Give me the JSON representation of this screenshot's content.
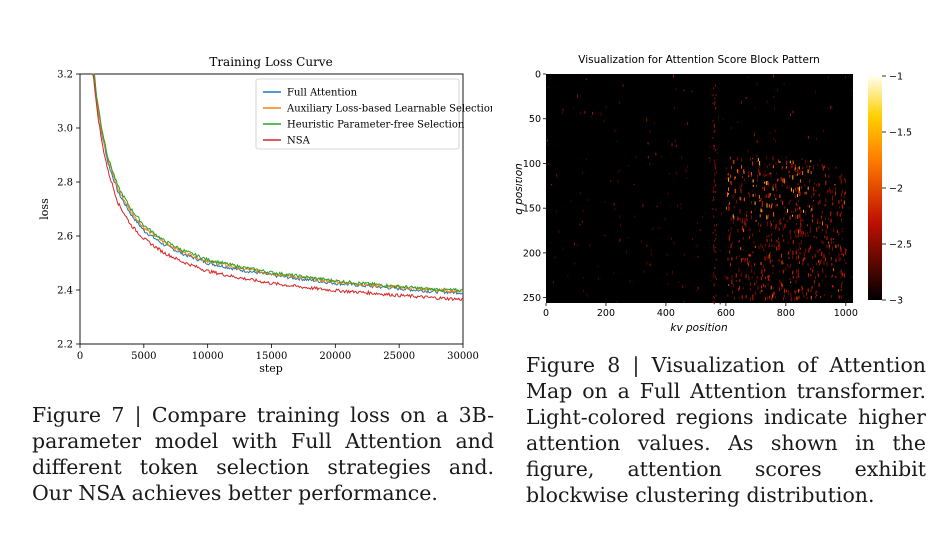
{
  "figure7": {
    "chart_data": {
      "type": "line",
      "title": "Training Loss Curve",
      "xlabel": "step",
      "ylabel": "loss",
      "xlim": [
        0,
        30000
      ],
      "ylim": [
        2.2,
        3.2
      ],
      "xticks": [
        0,
        5000,
        10000,
        15000,
        20000,
        25000,
        30000
      ],
      "yticks": [
        2.2,
        2.4,
        2.6,
        2.8,
        3.0,
        3.2
      ],
      "legend_position": "top-right",
      "grid": false,
      "series": [
        {
          "name": "Full Attention",
          "color": "#1f77b4",
          "x": [
            1000,
            1300,
            1700,
            2200,
            3000,
            4000,
            5000,
            6500,
            8000,
            10000,
            12500,
            15000,
            17500,
            20000,
            22500,
            25000,
            27500,
            30000
          ],
          "y": [
            3.24,
            3.1,
            2.98,
            2.87,
            2.76,
            2.68,
            2.62,
            2.57,
            2.535,
            2.5,
            2.475,
            2.455,
            2.44,
            2.425,
            2.415,
            2.405,
            2.395,
            2.39
          ]
        },
        {
          "name": "Auxiliary Loss-based Learnable Selection",
          "color": "#ff7f0e",
          "x": [
            1000,
            1300,
            1700,
            2200,
            3000,
            4000,
            5000,
            6500,
            8000,
            10000,
            12500,
            15000,
            17500,
            20000,
            22500,
            25000,
            27500,
            30000
          ],
          "y": [
            3.25,
            3.11,
            2.99,
            2.88,
            2.77,
            2.69,
            2.63,
            2.58,
            2.542,
            2.507,
            2.481,
            2.461,
            2.445,
            2.43,
            2.42,
            2.41,
            2.4,
            2.395
          ]
        },
        {
          "name": "Heuristic Parameter-free Selection",
          "color": "#2ca02c",
          "x": [
            1000,
            1300,
            1700,
            2200,
            3000,
            4000,
            5000,
            6500,
            8000,
            10000,
            12500,
            15000,
            17500,
            20000,
            22500,
            25000,
            27500,
            30000
          ],
          "y": [
            3.26,
            3.12,
            3.0,
            2.89,
            2.78,
            2.7,
            2.64,
            2.585,
            2.548,
            2.512,
            2.486,
            2.465,
            2.449,
            2.434,
            2.423,
            2.413,
            2.403,
            2.398
          ]
        },
        {
          "name": "NSA",
          "color": "#d62728",
          "x": [
            1000,
            1300,
            1700,
            2200,
            3000,
            4000,
            5000,
            6500,
            8000,
            10000,
            12500,
            15000,
            17500,
            20000,
            22500,
            25000,
            27500,
            30000
          ],
          "y": [
            3.22,
            3.08,
            2.95,
            2.84,
            2.72,
            2.64,
            2.59,
            2.54,
            2.505,
            2.47,
            2.445,
            2.425,
            2.41,
            2.398,
            2.39,
            2.38,
            2.372,
            2.365
          ]
        }
      ]
    },
    "caption": "Figure 7 | Compare training loss on a 3B-parameter model with Full Attention and different token selection strategies and. Our NSA achieves better performance."
  },
  "figure8": {
    "chart_data": {
      "type": "heatmap",
      "title": "Visualization for Attention Score Block Pattern",
      "xlabel": "kv position",
      "ylabel": "q position",
      "xlim": [
        0,
        1024
      ],
      "ylim": [
        0,
        256
      ],
      "xticks": [
        0,
        200,
        400,
        600,
        800,
        1000
      ],
      "yticks": [
        0,
        50,
        100,
        150,
        200,
        250
      ],
      "colorbar_ticks": [
        "−1",
        "−1.5",
        "−2",
        "−2.5",
        "−3"
      ],
      "colorbar_range": [
        -3,
        -1
      ],
      "colormap": "hot",
      "highlighted_blocks": [
        {
          "kv_range": [
            600,
            900
          ],
          "q_range": [
            90,
            250
          ],
          "level": -2.3
        },
        {
          "kv_range": [
            900,
            1000
          ],
          "q_range": [
            100,
            250
          ],
          "level": -2.6
        }
      ]
    },
    "caption": "Figure 8 | Visualization of Attention Map on a Full Attention transformer. Light-colored regions indicate higher attention values. As shown in the figure, attention scores exhibit blockwise clustering distribution."
  }
}
